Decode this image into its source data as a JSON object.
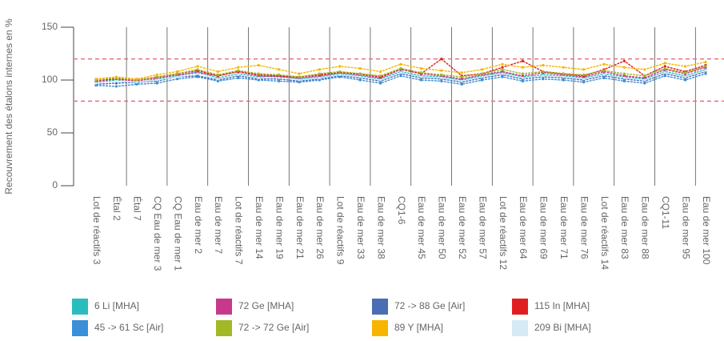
{
  "chart_data": {
    "type": "line",
    "y_label": "Recouvrement des étalons internes en %",
    "categories": [
      "Lot de réactifs 3",
      "Étal 2",
      "Étal 7",
      "CQ Eau de mer 3",
      "CQ Eau de mer 1",
      "Eau de mer 2",
      "Eau de mer 7",
      "Lot de réactifs 7",
      "Eau de mer 14",
      "Eau de mer 19",
      "Eau de mer 21",
      "Eau de mer 26",
      "Lot de réactifs 9",
      "Eau de mer 33",
      "Eau de mer 38",
      "CQ1-6",
      "Eau de mer 45",
      "Eau de mer 50",
      "Eau de mer 52",
      "Eau de mer 57",
      "Lot de réactifs 12",
      "Eau de mer 64",
      "Eau de mer 69",
      "Eau de mer 71",
      "Eau de mer 76",
      "Lot de réactifs 14",
      "Eau de mer 83",
      "Eau de mer 88",
      "CQ1-11",
      "Eau de mer 95",
      "Eau de mer 100"
    ],
    "series": [
      {
        "name": "6 Li [MHA]",
        "color": "#2bbcc0",
        "values": [
          98,
          100,
          97,
          101,
          104,
          108,
          102,
          106,
          103,
          104,
          101,
          103,
          106,
          104,
          101,
          108,
          104,
          103,
          100,
          104,
          107,
          103,
          105,
          104,
          102,
          106,
          103,
          101,
          108,
          104,
          110
        ]
      },
      {
        "name": "72 Ge [MHA]",
        "color": "#c8388a",
        "values": [
          99,
          101,
          99,
          102,
          105,
          107,
          104,
          108,
          104,
          103,
          102,
          104,
          107,
          105,
          102,
          110,
          106,
          104,
          101,
          105,
          108,
          104,
          107,
          105,
          103,
          108,
          104,
          102,
          110,
          106,
          112
        ]
      },
      {
        "name": "72 -> 88 Ge [Air]",
        "color": "#4a6db5",
        "values": [
          96,
          97,
          98,
          99,
          103,
          104,
          100,
          104,
          101,
          101,
          99,
          101,
          104,
          102,
          99,
          106,
          102,
          101,
          98,
          102,
          105,
          101,
          103,
          102,
          100,
          104,
          101,
          99,
          106,
          102,
          108
        ]
      },
      {
        "name": "115 In [MHA]",
        "color": "#e02020",
        "values": [
          100,
          101,
          100,
          103,
          106,
          109,
          104,
          108,
          105,
          104,
          103,
          105,
          107,
          106,
          103,
          111,
          106,
          120,
          104,
          106,
          112,
          118,
          108,
          106,
          104,
          110,
          118,
          104,
          113,
          108,
          114
        ]
      },
      {
        "name": "45 -> 61 Sc [Air]",
        "color": "#3a8fd8",
        "values": [
          95,
          94,
          96,
          97,
          101,
          103,
          99,
          102,
          100,
          99,
          98,
          100,
          103,
          100,
          97,
          104,
          100,
          99,
          96,
          100,
          103,
          99,
          101,
          100,
          98,
          102,
          99,
          97,
          104,
          100,
          106
        ]
      },
      {
        "name": "72 -> 72 Ge [Air]",
        "color": "#a2b826",
        "values": [
          100,
          102,
          100,
          103,
          106,
          110,
          105,
          109,
          106,
          105,
          103,
          106,
          108,
          106,
          104,
          111,
          107,
          105,
          103,
          106,
          110,
          106,
          108,
          106,
          105,
          109,
          106,
          104,
          111,
          107,
          113
        ]
      },
      {
        "name": "89 Y [MHA]",
        "color": "#f7b500",
        "values": [
          101,
          103,
          101,
          105,
          108,
          113,
          108,
          112,
          114,
          110,
          106,
          110,
          113,
          111,
          108,
          115,
          111,
          109,
          107,
          110,
          115,
          112,
          114,
          112,
          110,
          115,
          112,
          110,
          116,
          113,
          117
        ]
      },
      {
        "name": "209 Bi [MHA]",
        "color": "#d5eaf5",
        "values": [
          97,
          99,
          98,
          100,
          103,
          106,
          101,
          105,
          102,
          102,
          100,
          102,
          105,
          103,
          100,
          107,
          103,
          102,
          99,
          103,
          106,
          102,
          104,
          103,
          101,
          105,
          102,
          100,
          107,
          103,
          109
        ]
      }
    ],
    "ylim": [
      0,
      150
    ],
    "yticks": [
      0,
      50,
      100,
      150
    ],
    "reference_lines": [
      80,
      120
    ],
    "reference_color": "#e8707a"
  }
}
